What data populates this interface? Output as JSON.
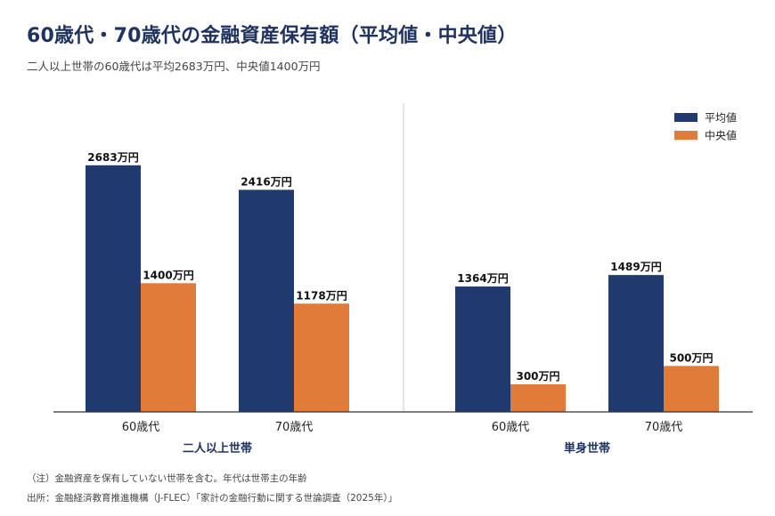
{
  "title": "60歳代・70歳代の金融資産保有額（平均値・中央値）",
  "subtitle": "二人以上世帯の60歳代は平均2683万円、中央値1400万円",
  "notes": {
    "note": "（注）金融資産を保有していない世帯を含む。年代は世帯主の年齢",
    "source": "出所：金融経済教育推進機構（J-FLEC）「家計の金融行動に関する世論調査（2025年）」"
  },
  "colors": {
    "mean": "#1f3a6e",
    "median": "#e07b39",
    "axis": "#333333",
    "divider": "#cccccc",
    "group_label": "#1f3260"
  },
  "chart_data": {
    "type": "bar",
    "unit_suffix": "万円",
    "ylim": [
      0,
      3000
    ],
    "grid": false,
    "legend_position": "top-right",
    "legend": [
      "平均値",
      "中央値"
    ],
    "groups": [
      {
        "name": "二人以上世帯",
        "categories": [
          "60歳代",
          "70歳代"
        ],
        "series": [
          {
            "name": "平均値",
            "values": [
              2683,
              2416
            ]
          },
          {
            "name": "中央値",
            "values": [
              1400,
              1178
            ]
          }
        ]
      },
      {
        "name": "単身世帯",
        "categories": [
          "60歳代",
          "70歳代"
        ],
        "series": [
          {
            "name": "平均値",
            "values": [
              1364,
              1489
            ]
          },
          {
            "name": "中央値",
            "values": [
              300,
              500
            ]
          }
        ]
      }
    ]
  }
}
